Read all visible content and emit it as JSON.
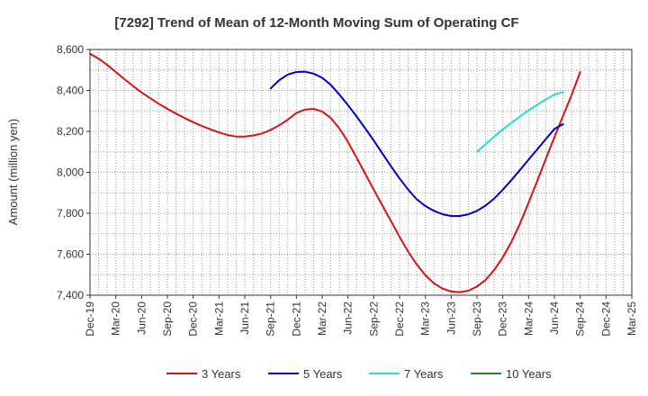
{
  "chart_data": {
    "type": "line",
    "title": "[7292]  Trend of Mean of 12-Month Moving Sum of Operating CF",
    "xlabel": "",
    "ylabel": "Amount (million yen)",
    "ylim": [
      7400,
      8600
    ],
    "yticks": [
      7400,
      7600,
      7800,
      8000,
      8200,
      8400,
      8600
    ],
    "ytick_labels": [
      "7,400",
      "7,600",
      "7,800",
      "8,000",
      "8,200",
      "8,400",
      "8,600"
    ],
    "xticks": [
      "Dec-19",
      "Mar-20",
      "Jun-20",
      "Sep-20",
      "Dec-20",
      "Mar-21",
      "Jun-21",
      "Sep-21",
      "Dec-21",
      "Mar-22",
      "Jun-22",
      "Sep-22",
      "Dec-22",
      "Mar-23",
      "Jun-23",
      "Sep-23",
      "Dec-23",
      "Mar-24",
      "Jun-24",
      "Sep-24",
      "Dec-24",
      "Mar-25"
    ],
    "grid": true,
    "legend_position": "bottom",
    "series": [
      {
        "name": "3 Years",
        "color": "#dd1111",
        "start_month": 0,
        "values": [
          8580,
          8555,
          8525,
          8490,
          8455,
          8422,
          8390,
          8362,
          8335,
          8310,
          8287,
          8265,
          8245,
          8227,
          8210,
          8195,
          8182,
          8175,
          8175,
          8180,
          8190,
          8207,
          8230,
          8257,
          8290,
          8307,
          8310,
          8297,
          8265,
          8215,
          8148,
          8072,
          7993,
          7915,
          7838,
          7762,
          7685,
          7612,
          7550,
          7497,
          7458,
          7432,
          7418,
          7415,
          7422,
          7442,
          7475,
          7523,
          7585,
          7660,
          7750,
          7852,
          7958,
          8065,
          8172,
          8275,
          8378,
          8490
        ]
      },
      {
        "name": "5 Years",
        "color": "#0000cc",
        "start_month": 21,
        "values": [
          8410,
          8450,
          8478,
          8490,
          8492,
          8482,
          8462,
          8427,
          8380,
          8328,
          8273,
          8215,
          8155,
          8092,
          8030,
          7970,
          7915,
          7868,
          7835,
          7812,
          7795,
          7787,
          7787,
          7795,
          7812,
          7838,
          7872,
          7915,
          7962,
          8012,
          8062,
          8112,
          8162,
          8212,
          8235
        ]
      },
      {
        "name": "7 Years",
        "color": "#22dddd",
        "start_month": 45,
        "values": [
          8100,
          8138,
          8175,
          8210,
          8242,
          8273,
          8303,
          8330,
          8356,
          8380,
          8392
        ]
      },
      {
        "name": "10 Years",
        "color": "#228822",
        "start_month": 0,
        "values": []
      }
    ]
  }
}
